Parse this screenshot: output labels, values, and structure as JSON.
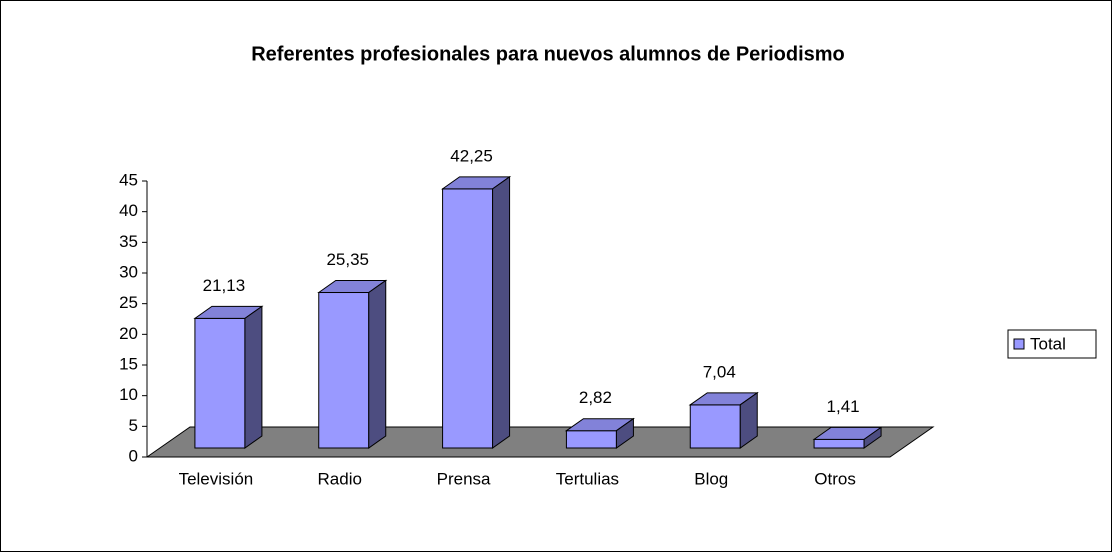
{
  "chart_data": {
    "type": "bar",
    "title": "Referentes profesionales para nuevos alumnos de Periodismo",
    "categories": [
      "Televisión",
      "Radio",
      "Prensa",
      "Tertulias",
      "Blog",
      "Otros"
    ],
    "series": [
      {
        "name": "Total",
        "color": "#9999ff",
        "values": [
          21.13,
          25.35,
          42.25,
          2.82,
          7.04,
          1.41
        ],
        "value_labels": [
          "21,13",
          "25,35",
          "42,25",
          "2,82",
          "7,04",
          "1,41"
        ]
      }
    ],
    "ylim": [
      0,
      45
    ],
    "yticks": [
      0,
      5,
      10,
      15,
      20,
      25,
      30,
      35,
      40,
      45
    ],
    "legend": "right",
    "floor_color": "#808080"
  }
}
